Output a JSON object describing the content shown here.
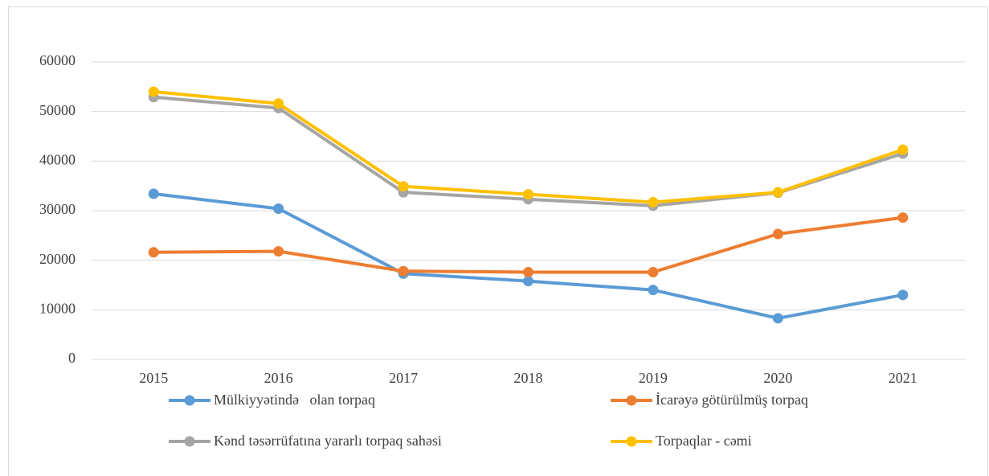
{
  "chart_data": {
    "type": "line",
    "categories": [
      "2015",
      "2016",
      "2017",
      "2018",
      "2019",
      "2020",
      "2021"
    ],
    "series": [
      {
        "name": "Mülkiyyətində   olan torpaq",
        "color": "#5b9bd5",
        "values": [
          33400,
          30400,
          17300,
          15800,
          14000,
          8300,
          13000
        ]
      },
      {
        "name": "İcarəyə götürülmüş torpaq",
        "color": "#ed7d31",
        "values": [
          21600,
          21800,
          17800,
          17600,
          17600,
          25300,
          28600
        ]
      },
      {
        "name": "Kənd təsərrüfatına yararlı torpaq sahəsi",
        "color": "#a5a5a5",
        "values": [
          52900,
          50700,
          33700,
          32300,
          31000,
          33600,
          41500
        ]
      },
      {
        "name": "Torpaqlar - cəmi",
        "color": "#ffc000",
        "values": [
          54000,
          51600,
          34900,
          33300,
          31700,
          33700,
          42300
        ]
      }
    ],
    "ylim": [
      0,
      60000
    ],
    "yticks": [
      0,
      10000,
      20000,
      30000,
      40000,
      50000,
      60000
    ],
    "grid": true,
    "legend": "bottom"
  }
}
